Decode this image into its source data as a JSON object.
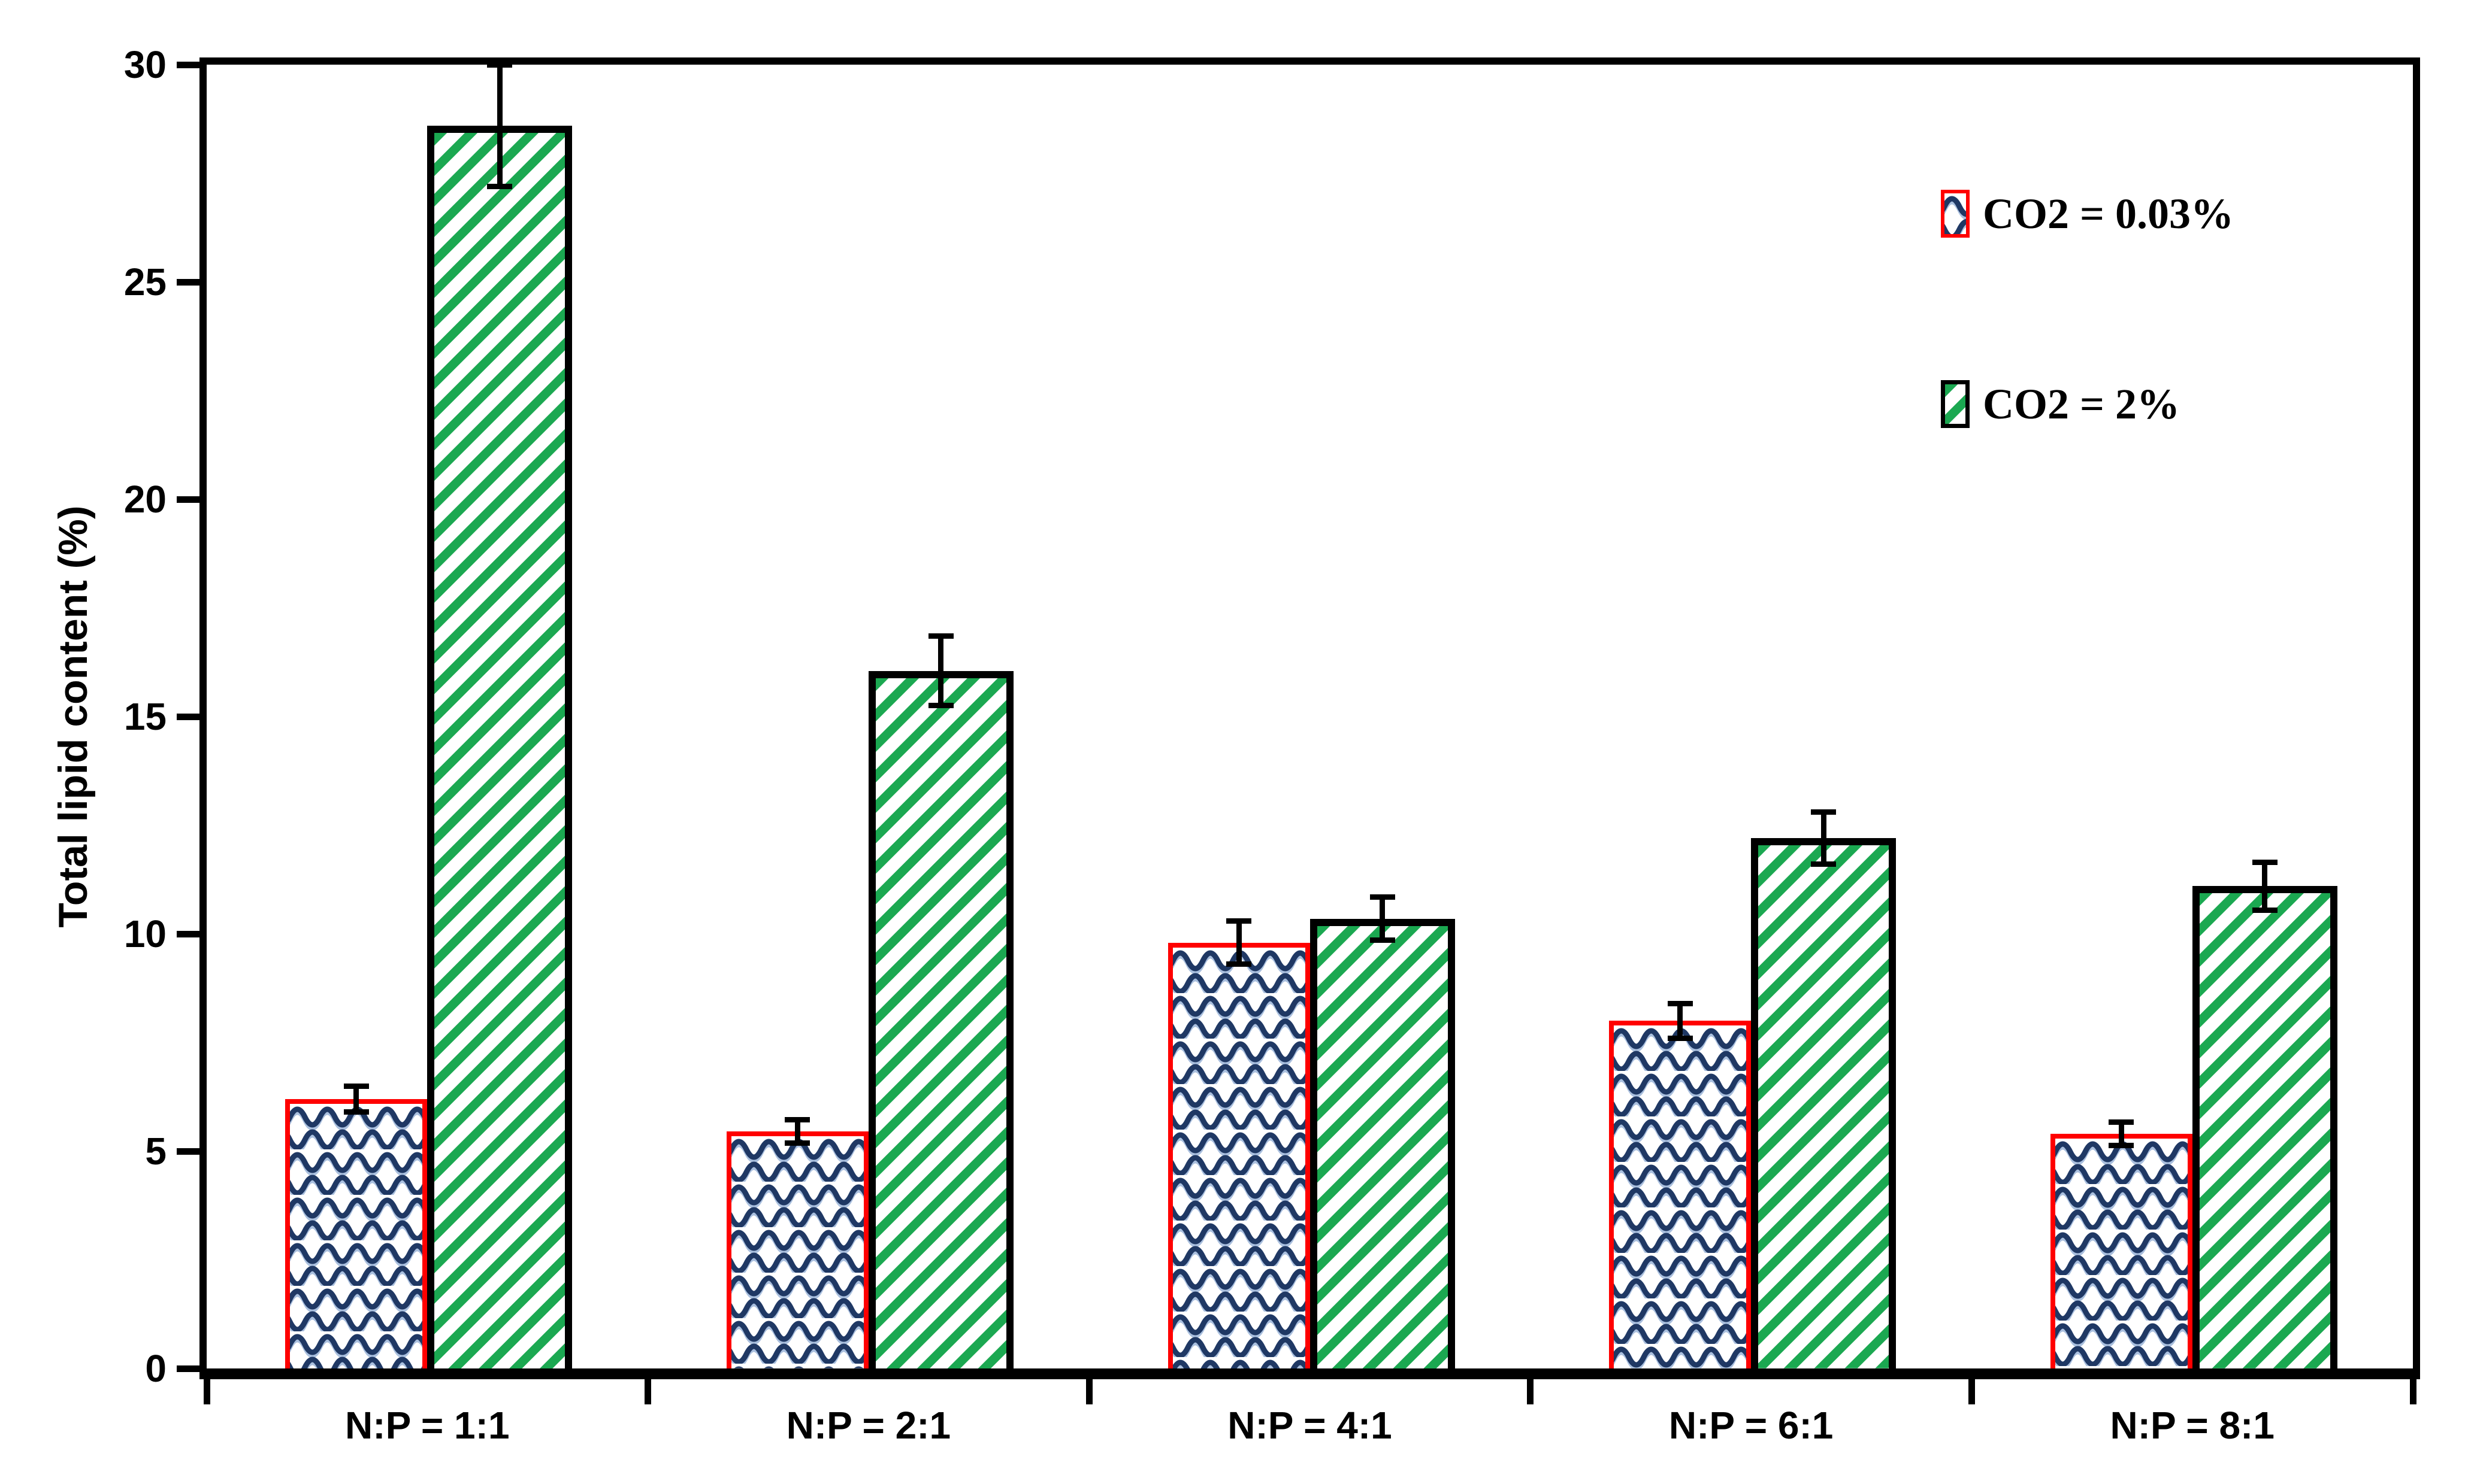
{
  "chart_data": {
    "type": "bar",
    "title": "",
    "xlabel": "",
    "ylabel": "Total lipid content (%)",
    "ylim": [
      0,
      30
    ],
    "yticks": [
      0,
      5,
      10,
      15,
      20,
      25,
      30
    ],
    "grid": false,
    "legend_position": "top-right",
    "background_color": "#FFFFFF",
    "axis_color": "#000000",
    "categories": [
      "N:P = 1:1",
      "N:P = 2:1",
      "N:P = 4:1",
      "N:P = 6:1",
      "N:P = 8:1"
    ],
    "series": [
      {
        "name": "CO2 = 0.03%",
        "values": [
          6.2,
          5.45,
          9.8,
          8.0,
          5.4
        ],
        "errors": [
          0.3,
          0.27,
          0.5,
          0.4,
          0.27
        ],
        "border_color": "#FF0000",
        "pattern": "wave",
        "pattern_color": "#1F3864",
        "pattern_shadow_color": "#A9BFDE"
      },
      {
        "name": "CO2 = 2%",
        "values": [
          28.6,
          16.05,
          10.35,
          12.2,
          11.1
        ],
        "errors": [
          1.4,
          0.8,
          0.5,
          0.6,
          0.55
        ],
        "border_color": "#000000",
        "pattern": "diagonal-stripes",
        "pattern_color": "#1BA851"
      }
    ],
    "error_bar_color": "#000000"
  }
}
